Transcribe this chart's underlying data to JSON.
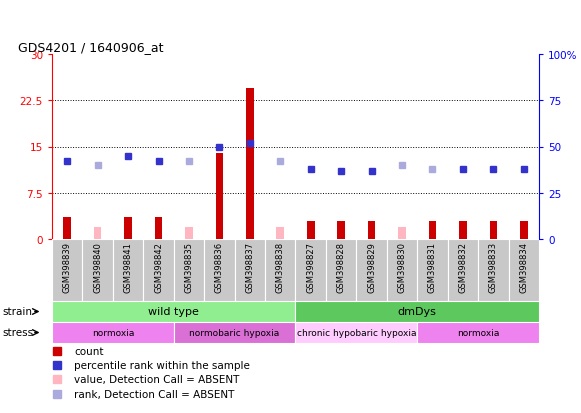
{
  "title": "GDS4201 / 1640906_at",
  "samples": [
    "GSM398839",
    "GSM398840",
    "GSM398841",
    "GSM398842",
    "GSM398835",
    "GSM398836",
    "GSM398837",
    "GSM398838",
    "GSM398827",
    "GSM398828",
    "GSM398829",
    "GSM398830",
    "GSM398831",
    "GSM398832",
    "GSM398833",
    "GSM398834"
  ],
  "count_values": [
    3.5,
    2.0,
    3.5,
    3.5,
    2.0,
    14.0,
    24.5,
    2.0,
    3.0,
    3.0,
    3.0,
    2.0,
    3.0,
    3.0,
    3.0,
    3.0
  ],
  "count_absent": [
    false,
    true,
    false,
    false,
    true,
    false,
    false,
    true,
    false,
    false,
    false,
    true,
    false,
    false,
    false,
    false
  ],
  "rank_values_pct": [
    42,
    40,
    45,
    42,
    42,
    50,
    52,
    42,
    38,
    37,
    37,
    40,
    38,
    38,
    38,
    38
  ],
  "rank_absent": [
    false,
    true,
    false,
    false,
    true,
    false,
    false,
    true,
    false,
    false,
    false,
    true,
    true,
    false,
    false,
    false
  ],
  "ylim_left": [
    0,
    30
  ],
  "ylim_right": [
    0,
    100
  ],
  "yticks_left": [
    0,
    7.5,
    15,
    22.5,
    30
  ],
  "yticks_right": [
    0,
    25,
    50,
    75,
    100
  ],
  "ytick_labels_left": [
    "0",
    "7.5",
    "15",
    "22.5",
    "30"
  ],
  "ytick_labels_right": [
    "0",
    "25",
    "50",
    "75",
    "100%"
  ],
  "strain_groups": [
    {
      "label": "wild type",
      "start": 0,
      "end": 8,
      "color": "#90EE90"
    },
    {
      "label": "dmDys",
      "start": 8,
      "end": 16,
      "color": "#5DC85D"
    }
  ],
  "stress_groups": [
    {
      "label": "normoxia",
      "start": 0,
      "end": 4,
      "color": "#EE82EE"
    },
    {
      "label": "normobaric hypoxia",
      "start": 4,
      "end": 8,
      "color": "#DA70D6"
    },
    {
      "label": "chronic hypobaric hypoxia",
      "start": 8,
      "end": 12,
      "color": "#FFCCFF"
    },
    {
      "label": "normoxia",
      "start": 12,
      "end": 16,
      "color": "#EE82EE"
    }
  ],
  "color_count_present": "#CC0000",
  "color_count_absent": "#FFB6C1",
  "color_rank_present": "#3333CC",
  "color_rank_absent": "#AAAADD",
  "legend": [
    {
      "label": "count",
      "color": "#CC0000"
    },
    {
      "label": "percentile rank within the sample",
      "color": "#3333CC"
    },
    {
      "label": "value, Detection Call = ABSENT",
      "color": "#FFB6C1"
    },
    {
      "label": "rank, Detection Call = ABSENT",
      "color": "#AAAADD"
    }
  ]
}
